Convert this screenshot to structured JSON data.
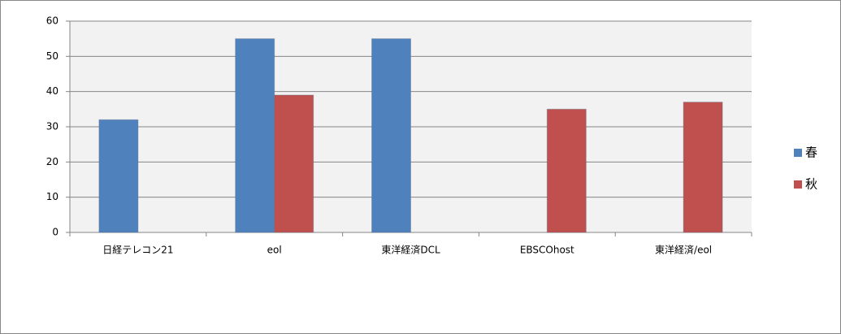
{
  "chart_data": {
    "type": "bar",
    "categories": [
      "日経テレコン21",
      "eol",
      "東洋経済DCL",
      "EBSCOhost",
      "東洋経済/eol"
    ],
    "series": [
      {
        "name": "春",
        "color": "#4f81bd",
        "values": [
          32,
          55,
          55,
          null,
          null
        ]
      },
      {
        "name": "秋",
        "color": "#c0504d",
        "values": [
          null,
          39,
          null,
          35,
          37
        ]
      }
    ],
    "ylim": [
      0,
      60
    ],
    "yticks": [
      0,
      10,
      20,
      30,
      40,
      50,
      60
    ],
    "grid": true,
    "legend": "right"
  }
}
